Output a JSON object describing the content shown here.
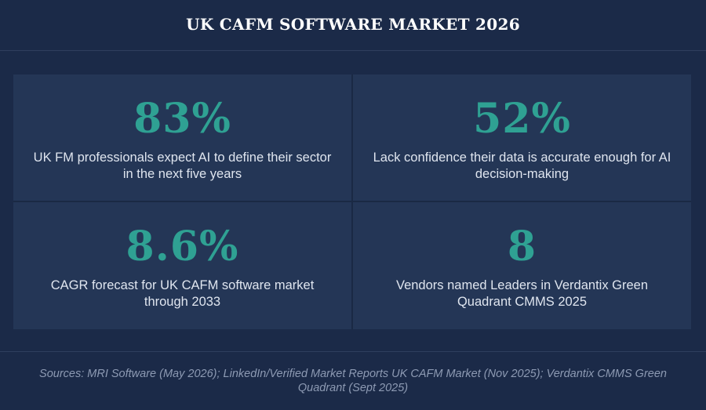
{
  "header": {
    "title": "UK CAFM SOFTWARE MARKET 2026"
  },
  "stats": [
    {
      "value": "83%",
      "description": "UK FM professionals expect AI to define their sector in the next five years"
    },
    {
      "value": "52%",
      "description": "Lack confidence their data is accurate enough for AI decision-making"
    },
    {
      "value": "8.6%",
      "description": "CAGR forecast for UK CAFM software market through 2033"
    },
    {
      "value": "8",
      "description": "Vendors named Leaders in Verdantix Green Quadrant CMMS 2025"
    }
  ],
  "footer": {
    "sources": "Sources: MRI Software (May 2026); LinkedIn/Verified Market Reports UK CAFM Market (Nov 2025); Verdantix CMMS Green Quadrant (Sept 2025)"
  },
  "colors": {
    "background": "#1b2a48",
    "card": "#243656",
    "accent": "#2fa193",
    "text": "#dfe5ef",
    "muted": "#8d9ab3"
  }
}
